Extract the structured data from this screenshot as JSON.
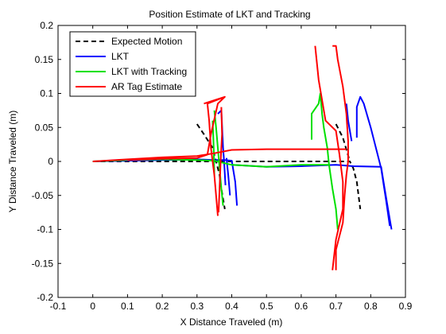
{
  "chart_data": {
    "type": "line",
    "title": "Position Estimate of LKT and Tracking",
    "xlabel": "X Distance Traveled (m)",
    "ylabel": "Y Distance Traveled (m)",
    "xlim": [
      -0.1,
      0.9
    ],
    "ylim": [
      -0.2,
      0.2
    ],
    "xticks": [
      -0.1,
      0,
      0.1,
      0.2,
      0.3,
      0.4,
      0.5,
      0.6,
      0.7,
      0.8,
      0.9
    ],
    "yticks": [
      -0.2,
      -0.15,
      -0.1,
      -0.05,
      0,
      0.05,
      0.1,
      0.15,
      0.2
    ],
    "xtick_labels": [
      "-0.1",
      "0",
      "0.1",
      "0.2",
      "0.3",
      "0.4",
      "0.5",
      "0.6",
      "0.7",
      "0.8",
      "0.9"
    ],
    "ytick_labels": [
      "-0.2",
      "-0.15",
      "-0.1",
      "-0.05",
      "0",
      "0.05",
      "0.1",
      "0.15",
      "0.2"
    ],
    "grid": false,
    "legend_position": "top-left",
    "series": [
      {
        "name": "Expected Motion",
        "color": "#000000",
        "dash": true,
        "points": [
          [
            0,
            0
          ],
          [
            0.1,
            0
          ],
          [
            0.2,
            0
          ],
          [
            0.3,
            0
          ],
          [
            0.355,
            0
          ],
          [
            0.5,
            0
          ],
          [
            0.6,
            0
          ],
          [
            0.74,
            0
          ],
          [
            0.75,
            -0.01
          ],
          [
            0.76,
            -0.03
          ],
          [
            0.77,
            -0.07
          ],
          null,
          [
            0.3,
            0.055
          ],
          [
            0.32,
            0.04
          ],
          [
            0.345,
            0.02
          ],
          [
            0.355,
            0
          ],
          [
            0.365,
            -0.02
          ],
          [
            0.37,
            -0.04
          ],
          [
            0.38,
            -0.07
          ],
          null,
          [
            0.7,
            0.055
          ],
          [
            0.72,
            0.035
          ],
          [
            0.74,
            0
          ]
        ]
      },
      {
        "name": "LKT",
        "color": "#0000ff",
        "dash": false,
        "points": [
          [
            0,
            0
          ],
          [
            0.1,
            0.001
          ],
          [
            0.2,
            0.002
          ],
          [
            0.3,
            0.003
          ],
          [
            0.35,
            0.002
          ],
          [
            0.38,
            0.002
          ],
          [
            0.4,
            0.001
          ],
          [
            0.41,
            -0.03
          ],
          [
            0.415,
            -0.065
          ],
          null,
          [
            0.385,
            0.005
          ],
          [
            0.39,
            -0.02
          ],
          [
            0.395,
            -0.05
          ],
          null,
          [
            0.36,
            0.07
          ],
          [
            0.37,
            0.075
          ],
          [
            0.375,
            0.02
          ],
          [
            0.378,
            0
          ],
          [
            0.382,
            -0.035
          ],
          null,
          [
            0.4,
            -0.005
          ],
          [
            0.5,
            -0.008
          ],
          [
            0.6,
            -0.007
          ],
          [
            0.7,
            -0.005
          ],
          [
            0.75,
            -0.007
          ],
          [
            0.83,
            -0.008
          ],
          [
            0.84,
            -0.04
          ],
          [
            0.85,
            -0.07
          ],
          [
            0.86,
            -0.1
          ],
          null,
          [
            0.76,
            0.035
          ],
          [
            0.76,
            0.08
          ],
          [
            0.77,
            0.095
          ],
          [
            0.78,
            0.085
          ],
          [
            0.8,
            0.05
          ],
          [
            0.83,
            -0.01
          ],
          [
            0.845,
            -0.06
          ],
          [
            0.855,
            -0.095
          ],
          null,
          [
            0.73,
            0.085
          ],
          [
            0.735,
            0.06
          ],
          [
            0.745,
            0.03
          ]
        ]
      },
      {
        "name": "LKT with Tracking",
        "color": "#00e000",
        "dash": false,
        "points": [
          [
            0,
            0
          ],
          [
            0.1,
            0.002
          ],
          [
            0.2,
            0.003
          ],
          [
            0.3,
            0.002
          ],
          [
            0.35,
            0.001
          ],
          [
            0.4,
            -0.005
          ],
          [
            0.5,
            -0.008
          ],
          [
            0.6,
            -0.005
          ],
          [
            0.68,
            -0.005
          ],
          [
            0.69,
            -0.04
          ],
          [
            0.7,
            -0.07
          ],
          [
            0.705,
            -0.1
          ],
          null,
          [
            0.35,
            0.075
          ],
          [
            0.355,
            0.05
          ],
          [
            0.36,
            0.02
          ],
          [
            0.365,
            -0.01
          ],
          [
            0.37,
            -0.04
          ],
          [
            0.375,
            -0.065
          ],
          null,
          [
            0.345,
            0.06
          ],
          [
            0.348,
            0.02
          ],
          [
            0.35,
            -0.02
          ],
          null,
          [
            0.63,
            0.032
          ],
          [
            0.63,
            0.07
          ],
          [
            0.65,
            0.085
          ],
          [
            0.655,
            0.1
          ],
          [
            0.66,
            0.07
          ],
          [
            0.665,
            0.05
          ],
          [
            0.675,
            0.02
          ],
          [
            0.68,
            -0.005
          ]
        ]
      },
      {
        "name": "AR Tag Estimate",
        "color": "#ff0000",
        "dash": false,
        "points": [
          [
            0,
            0
          ],
          [
            0.1,
            0.003
          ],
          [
            0.2,
            0.006
          ],
          [
            0.3,
            0.008
          ],
          [
            0.35,
            0.012
          ],
          [
            0.4,
            0.017
          ],
          [
            0.5,
            0.018
          ],
          [
            0.6,
            0.018
          ],
          [
            0.7,
            0.018
          ],
          [
            0.73,
            0.018
          ],
          null,
          [
            0.32,
            0.085
          ],
          [
            0.38,
            0.095
          ],
          [
            0.33,
            0.085
          ],
          [
            0.335,
            0.06
          ],
          [
            0.34,
            0.02
          ],
          [
            0.35,
            -0.02
          ],
          [
            0.355,
            -0.05
          ],
          [
            0.36,
            -0.08
          ],
          null,
          [
            0.37,
            0.08
          ],
          [
            0.372,
            0.04
          ],
          [
            0.368,
            0
          ],
          [
            0.365,
            -0.04
          ],
          [
            0.362,
            -0.075
          ],
          null,
          [
            0.38,
            0.095
          ],
          [
            0.36,
            0.085
          ],
          [
            0.34,
            0.04
          ],
          [
            0.33,
            0.01
          ],
          [
            0.3,
            0.005
          ],
          [
            0.2,
            0.004
          ],
          [
            0.1,
            0.002
          ],
          [
            0
          ],
          null,
          [
            0.69,
            0.17
          ],
          [
            0.7,
            0.17
          ],
          [
            0.705,
            0.15
          ],
          [
            0.72,
            0.11
          ],
          [
            0.73,
            0.07
          ],
          [
            0.735,
            0.03
          ],
          [
            0.735,
            0
          ],
          [
            0.73,
            -0.02
          ],
          [
            0.725,
            -0.05
          ],
          [
            0.72,
            -0.09
          ],
          [
            0.7,
            -0.13
          ],
          [
            0.7,
            -0.16
          ],
          null,
          [
            0.64,
            0.17
          ],
          [
            0.65,
            0.12
          ],
          [
            0.67,
            0.06
          ],
          [
            0.7,
            0.045
          ],
          [
            0.71,
            0.01
          ],
          [
            0.72,
            -0.03
          ],
          [
            0.72,
            -0.07
          ],
          [
            0.7,
            -0.115
          ],
          [
            0.69,
            -0.16
          ]
        ]
      }
    ]
  }
}
